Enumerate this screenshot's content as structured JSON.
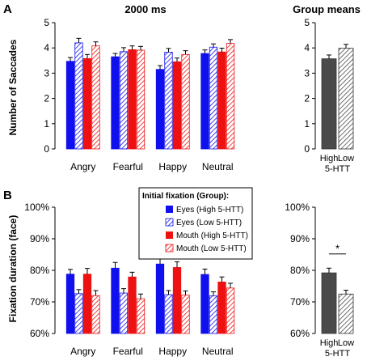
{
  "panels": {
    "A": {
      "label": "A",
      "title": "2000 ms",
      "group_title": "Group means",
      "ylabel": "Number of Saccades"
    },
    "B": {
      "label": "B",
      "ylabel": "Fixation duration (face)",
      "significance": "*"
    }
  },
  "legend": {
    "title": "Initial fixation (Group):",
    "entries": [
      "Eyes (High 5-HTT)",
      "Eyes (Low 5-HTT)",
      "Mouth (High 5-HTT)",
      "Mouth (Low 5-HTT)"
    ]
  },
  "colors": {
    "eyes": "#1010ee",
    "mouth": "#ee1111",
    "group_bar": "#4a4a4a"
  },
  "group_axis": {
    "labels": [
      "High",
      "Low"
    ],
    "sublabel": "5-HTT"
  },
  "chart_data": [
    {
      "type": "bar",
      "panel": "A",
      "title": "2000 ms",
      "ylabel": "Number of Saccades",
      "categories": [
        "Angry",
        "Fearful",
        "Happy",
        "Neutral"
      ],
      "ylim": [
        0,
        5
      ],
      "yticks": [
        "0",
        "1",
        "2",
        "3",
        "4",
        "5"
      ],
      "series": [
        {
          "name": "Eyes (High 5-HTT)",
          "values": [
            3.47,
            3.65,
            3.15,
            3.78
          ],
          "errors": [
            0.15,
            0.13,
            0.15,
            0.14
          ]
        },
        {
          "name": "Eyes (Low 5-HTT)",
          "values": [
            4.2,
            3.85,
            3.83,
            4.03
          ],
          "errors": [
            0.18,
            0.16,
            0.15,
            0.13
          ]
        },
        {
          "name": "Mouth (High 5-HTT)",
          "values": [
            3.58,
            3.93,
            3.45,
            3.84
          ],
          "errors": [
            0.16,
            0.15,
            0.15,
            0.15
          ]
        },
        {
          "name": "Mouth (Low 5-HTT)",
          "values": [
            4.08,
            3.91,
            3.74,
            4.18
          ],
          "errors": [
            0.16,
            0.15,
            0.15,
            0.15
          ]
        }
      ]
    },
    {
      "type": "bar",
      "panel": "A",
      "title": "Group means",
      "categories": [
        "High",
        "Low"
      ],
      "ylim": [
        0,
        5
      ],
      "yticks": [
        "0",
        "1",
        "2",
        "3",
        "4",
        "5"
      ],
      "values": [
        3.57,
        3.99
      ],
      "errors": [
        0.15,
        0.15
      ]
    },
    {
      "type": "bar",
      "panel": "B",
      "ylabel": "Fixation duration (face)",
      "categories": [
        "Angry",
        "Fearful",
        "Happy",
        "Neutral"
      ],
      "ylim": [
        60,
        100
      ],
      "yticks": [
        "60%",
        "70%",
        "80%",
        "90%",
        "100%"
      ],
      "series": [
        {
          "name": "Eyes (High 5-HTT)",
          "values": [
            78.8,
            80.7,
            82.0,
            78.7
          ],
          "errors": [
            1.5,
            1.8,
            1.6,
            1.7
          ]
        },
        {
          "name": "Eyes (Low 5-HTT)",
          "values": [
            72.6,
            72.8,
            72.3,
            71.9
          ],
          "errors": [
            1.3,
            1.4,
            1.3,
            1.3
          ]
        },
        {
          "name": "Mouth (High 5-HTT)",
          "values": [
            78.8,
            77.9,
            80.9,
            76.3
          ],
          "errors": [
            1.8,
            1.5,
            1.8,
            1.6
          ]
        },
        {
          "name": "Mouth (Low 5-HTT)",
          "values": [
            72.0,
            71.0,
            72.2,
            74.4
          ],
          "errors": [
            1.6,
            1.5,
            1.3,
            1.5
          ]
        }
      ]
    },
    {
      "type": "bar",
      "panel": "B",
      "categories": [
        "High",
        "Low"
      ],
      "ylim": [
        60,
        100
      ],
      "yticks": [
        "60%",
        "70%",
        "80%",
        "90%",
        "100%"
      ],
      "values": [
        79.2,
        72.5
      ],
      "errors": [
        1.5,
        1.2
      ],
      "annotation": "*"
    }
  ]
}
